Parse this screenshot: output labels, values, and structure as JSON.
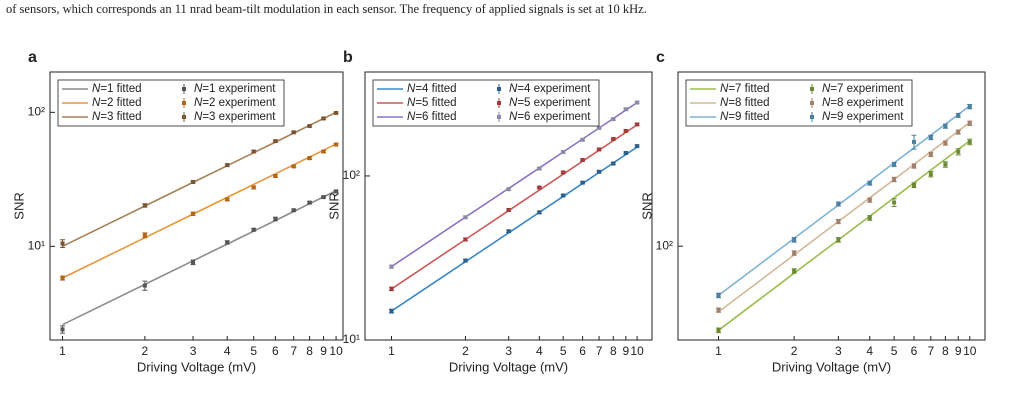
{
  "caption": "of sensors, which corresponds an 11 nrad beam-tilt modulation in each sensor. The frequency of applied signals is set at 10 kHz.",
  "chart_data": [
    {
      "type": "line",
      "label": "a",
      "log": true,
      "xlabel": "Driving Voltage (mV)",
      "ylabel": "SNR",
      "x": [
        1,
        2,
        3,
        4,
        5,
        6,
        7,
        8,
        9,
        10
      ],
      "xlim": [
        0.9,
        10.6
      ],
      "ylim": [
        2,
        200
      ],
      "xticks": [
        1,
        2,
        3,
        4,
        5,
        6,
        7,
        8,
        9,
        10
      ],
      "yticks": [
        {
          "value": 10,
          "label": "10¹"
        },
        {
          "value": 100,
          "label": "10²"
        }
      ],
      "series": [
        {
          "name": "N=1 fitted",
          "color": "#8c8c8c",
          "style": "line",
          "values": [
            2.6,
            5.2,
            7.8,
            10.4,
            13,
            15.6,
            18.2,
            20.8,
            23.4,
            26
          ]
        },
        {
          "name": "N=2 fitted",
          "color": "#e8963a",
          "style": "line",
          "values": [
            5.8,
            11.6,
            17.4,
            23.2,
            29,
            34.8,
            40.6,
            46.4,
            52.2,
            58
          ]
        },
        {
          "name": "N=3 fitted",
          "color": "#a88058",
          "style": "line",
          "values": [
            10,
            20,
            30,
            40,
            50,
            60,
            70,
            80,
            90,
            100
          ]
        },
        {
          "name": "N=1 experiment",
          "color": "#555555",
          "style": "errorbar",
          "values": [
            2.4,
            5.1,
            7.6,
            10.7,
            13.3,
            16,
            18.6,
            21.2,
            23.3,
            25.7
          ],
          "errors": [
            0.15,
            0.4,
            0.3,
            0.3,
            0.3,
            0.5,
            0.4,
            0.4,
            0.4,
            0.5
          ]
        },
        {
          "name": "N=2 experiment",
          "color": "#b0651a",
          "style": "errorbar",
          "values": [
            5.8,
            12.1,
            17.5,
            22.4,
            27.5,
            33.5,
            39.5,
            45.5,
            51,
            57.5
          ],
          "errors": [
            0.2,
            0.5,
            0.5,
            0.5,
            0.7,
            0.8,
            0.8,
            1,
            1,
            1.2
          ]
        },
        {
          "name": "N=3 experiment",
          "color": "#7a5535",
          "style": "errorbar",
          "values": [
            10.5,
            20.2,
            30.2,
            40.4,
            51,
            61,
            71,
            79,
            90,
            99
          ],
          "errors": [
            0.7,
            0.6,
            0.6,
            0.8,
            1,
            1.1,
            1.2,
            1.3,
            1.5,
            1.6
          ]
        }
      ]
    },
    {
      "type": "line",
      "label": "b",
      "log": true,
      "xlabel": "Driving Voltage (mV)",
      "ylabel": "SNR",
      "x": [
        1,
        2,
        3,
        4,
        5,
        6,
        7,
        8,
        9,
        10
      ],
      "xlim": [
        0.78,
        11.5
      ],
      "ylim": [
        10,
        430
      ],
      "xticks": [
        1,
        2,
        3,
        4,
        5,
        6,
        7,
        8,
        9,
        10
      ],
      "yticks": [
        {
          "value": 10,
          "label": "10¹"
        },
        {
          "value": 100,
          "label": "10²"
        }
      ],
      "series": [
        {
          "name": "N=4 fitted",
          "color": "#3a87c8",
          "style": "line",
          "values": [
            15,
            30,
            45,
            60,
            75,
            90,
            105,
            120,
            135,
            150
          ]
        },
        {
          "name": "N=5 fitted",
          "color": "#cc5a5a",
          "style": "line",
          "values": [
            20.5,
            41,
            61.5,
            82,
            102.5,
            123,
            143.5,
            164,
            184.5,
            205
          ]
        },
        {
          "name": "N=6 fitted",
          "color": "#8c73c8",
          "style": "line",
          "values": [
            28,
            56,
            84,
            112,
            140,
            168,
            196,
            224,
            252,
            280
          ]
        },
        {
          "name": "N=4 experiment",
          "color": "#2c5f8a",
          "style": "errorbar",
          "values": [
            15,
            30.5,
            46,
            60,
            76,
            91,
            106,
            119,
            138,
            152
          ],
          "errors": [
            0.4,
            0.6,
            0.8,
            1,
            1.2,
            1.4,
            1.6,
            1.8,
            2,
            2.2
          ]
        },
        {
          "name": "N=5 experiment",
          "color": "#a33a3a",
          "style": "errorbar",
          "values": [
            20.5,
            41,
            62,
            85,
            105,
            125,
            145,
            168,
            188,
            206
          ],
          "errors": [
            0.5,
            0.8,
            1,
            1.3,
            1.6,
            1.9,
            2.2,
            2.5,
            2.8,
            3.1
          ]
        },
        {
          "name": "N=6 experiment",
          "color": "#8a8aa8",
          "style": "errorbar",
          "values": [
            28,
            56,
            83,
            111,
            140,
            166,
            196,
            222,
            255,
            280
          ],
          "errors": [
            0.6,
            1,
            1.4,
            1.8,
            2.2,
            2.6,
            3,
            3.4,
            3.8,
            4.2
          ]
        }
      ]
    },
    {
      "type": "line",
      "label": "c",
      "log": true,
      "xlabel": "Driving Voltage (mV)",
      "ylabel": "SNR",
      "x": [
        1,
        2,
        3,
        4,
        5,
        6,
        7,
        8,
        9,
        10
      ],
      "xlim": [
        0.69,
        11.5
      ],
      "ylim": [
        32,
        830
      ],
      "xticks": [
        1,
        2,
        3,
        4,
        5,
        6,
        7,
        8,
        9,
        10
      ],
      "yticks": [
        {
          "value": 100,
          "label": "10²"
        }
      ],
      "series": [
        {
          "name": "N=7 fitted",
          "color": "#9bbd50",
          "style": "line",
          "values": [
            36,
            72,
            108,
            144,
            180,
            216,
            252,
            288,
            324,
            360
          ]
        },
        {
          "name": "N=8 fitted",
          "color": "#d2b896",
          "style": "line",
          "values": [
            45,
            90,
            135,
            180,
            225,
            270,
            315,
            360,
            405,
            450
          ]
        },
        {
          "name": "N=9 fitted",
          "color": "#7fb3d8",
          "style": "line",
          "values": [
            55,
            110,
            165,
            220,
            275,
            330,
            385,
            440,
            495,
            550
          ]
        },
        {
          "name": "N=7 experiment",
          "color": "#6b8a33",
          "style": "errorbar",
          "values": [
            36,
            74,
            108,
            141,
            170,
            210,
            240,
            270,
            315,
            355
          ],
          "errors": [
            1,
            2,
            3,
            4,
            8,
            6,
            8,
            9,
            12,
            12
          ]
        },
        {
          "name": "N=8 experiment",
          "color": "#a0806a",
          "style": "errorbar",
          "values": [
            46,
            92,
            135,
            175,
            225,
            265,
            305,
            350,
            400,
            445
          ],
          "errors": [
            1.2,
            2.5,
            3.5,
            4.5,
            6,
            7,
            8,
            9,
            10,
            12
          ]
        },
        {
          "name": "N=9 experiment",
          "color": "#4a7fa0",
          "style": "errorbar",
          "values": [
            55,
            108,
            167,
            215,
            270,
            355,
            375,
            430,
            490,
            545
          ],
          "errors": [
            1.5,
            3,
            4,
            5,
            7,
            30,
            10,
            11,
            12,
            14
          ]
        }
      ]
    }
  ]
}
